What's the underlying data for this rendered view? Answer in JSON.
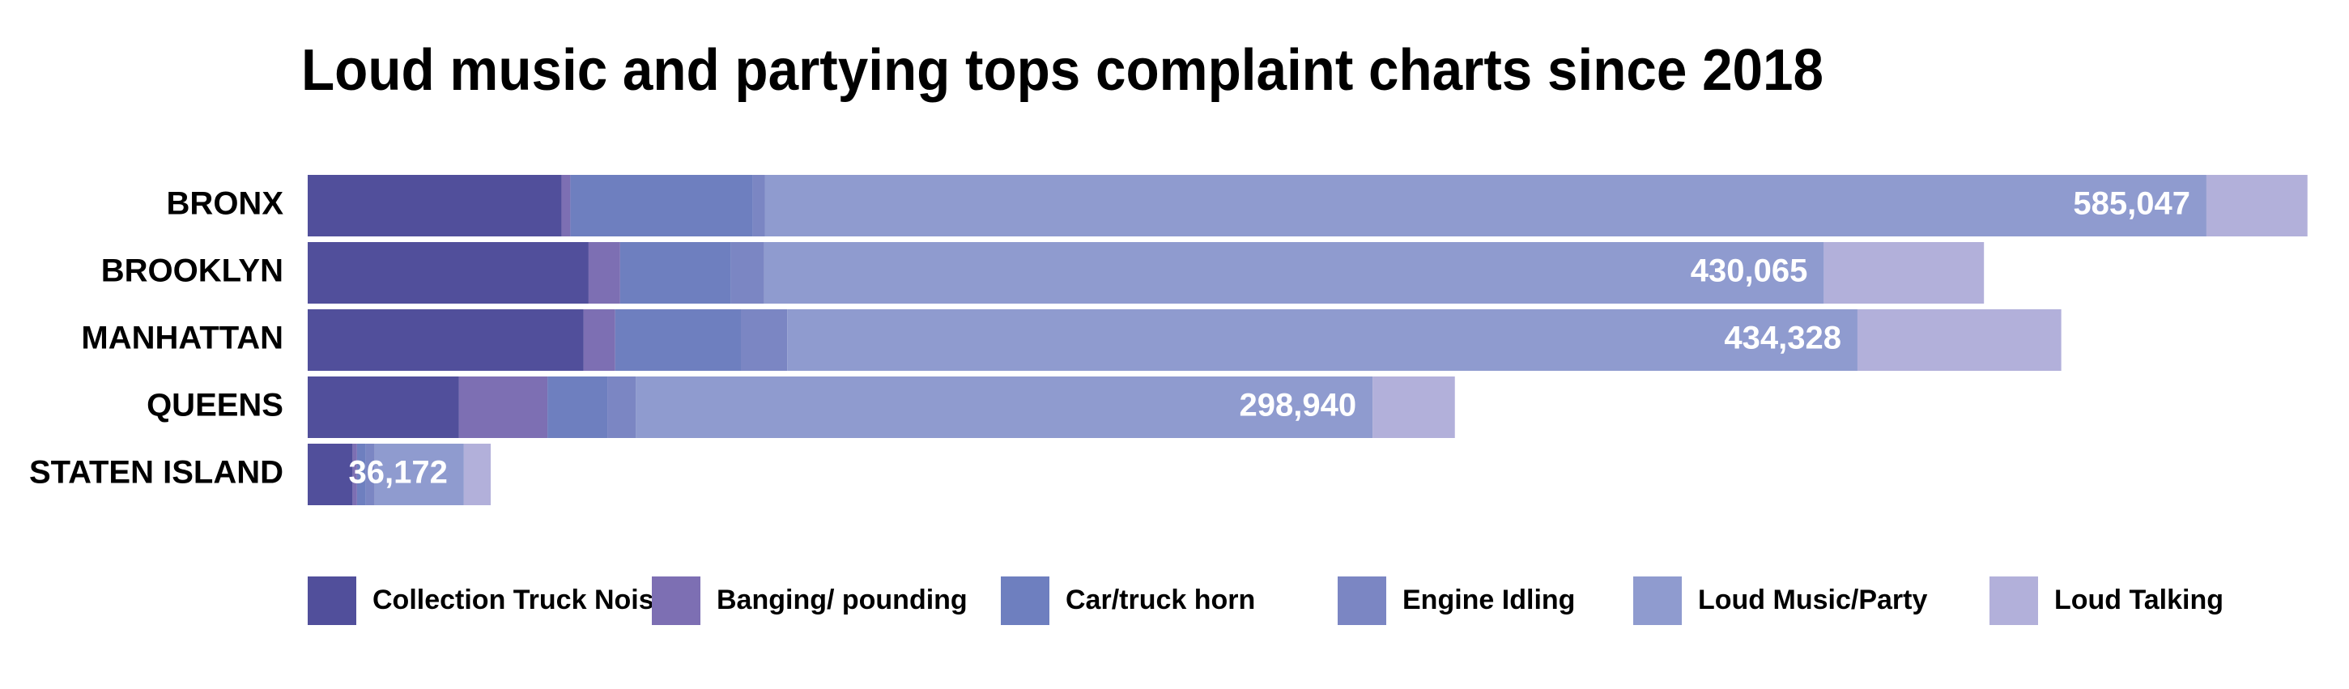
{
  "chart_data": {
    "type": "stacked-bar-horizontal",
    "title": "Loud music and partying tops complaint charts since 2018",
    "categories": [
      "BRONX",
      "BROOKLYN",
      "MANHATTAN",
      "QUEENS",
      "STATEN ISLAND"
    ],
    "series": [
      {
        "name": "Collection Truck Noise",
        "color": "#514f9b",
        "values": [
          103000,
          114000,
          112000,
          61400,
          18200
        ]
      },
      {
        "name": "Banging/ pounding",
        "color": "#7d6fb3",
        "values": [
          3600,
          12800,
          12800,
          35900,
          1800
        ]
      },
      {
        "name": "Car/truck horn",
        "color": "#6e7fbf",
        "values": [
          74000,
          45000,
          51000,
          24300,
          3600
        ]
      },
      {
        "name": "Engine Idling",
        "color": "#7b86c3",
        "values": [
          4900,
          13400,
          18800,
          11600,
          3600
        ]
      },
      {
        "name": "Loud Music/Party",
        "color": "#8f9bcf",
        "values": [
          585047,
          430065,
          434328,
          298940,
          36172
        ],
        "value_labels": [
          "585,047",
          "430,065",
          "434,328",
          "298,940",
          "36,172"
        ]
      },
      {
        "name": "Loud Talking",
        "color": "#b2b0da",
        "values": [
          41000,
          65000,
          82700,
          33400,
          10900
        ]
      }
    ]
  }
}
